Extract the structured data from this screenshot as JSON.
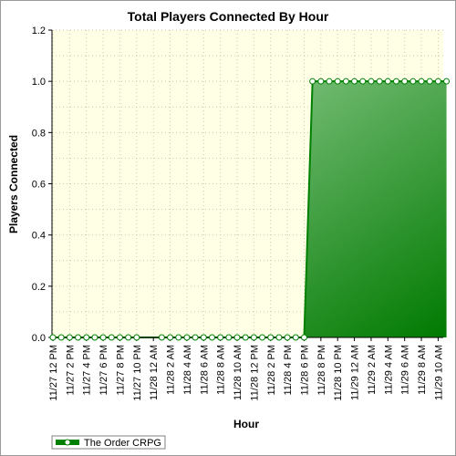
{
  "chart_data": {
    "type": "area",
    "title": "Total Players Connected By Hour",
    "xlabel": "Hour",
    "ylabel": "Players Connected",
    "ylim": [
      0,
      1.2
    ],
    "yticks": [
      "0.0",
      "0.2",
      "0.4",
      "0.6",
      "0.8",
      "1.0",
      "1.2"
    ],
    "xtick_labels": [
      "11/27 12 PM",
      "11/27 2 PM",
      "11/27 4 PM",
      "11/27 6 PM",
      "11/27 8 PM",
      "11/27 10 PM",
      "11/28 12 AM",
      "11/28 2 AM",
      "11/28 4 AM",
      "11/28 6 AM",
      "11/28 8 AM",
      "11/28 10 AM",
      "11/28 12 PM",
      "11/28 2 PM",
      "11/28 4 PM",
      "11/28 6 PM",
      "11/28 8 PM",
      "11/28 10 PM",
      "11/29 12 AM",
      "11/29 2 AM",
      "11/29 4 AM",
      "11/29 6 AM",
      "11/29 8 AM",
      "11/29 10 AM"
    ],
    "grid": true,
    "legend_position": "bottom-left",
    "colors": {
      "plot_bg": "#ffffe6",
      "line": "#008000",
      "fill_light": "#a6d8a6",
      "fill_dark": "#007a00",
      "grid": "#c8c8b4"
    },
    "series": [
      {
        "name": "The Order CRPG",
        "x": [
          "11/27 12 PM",
          "11/27 1 PM",
          "11/27 2 PM",
          "11/27 3 PM",
          "11/27 4 PM",
          "11/27 5 PM",
          "11/27 6 PM",
          "11/27 7 PM",
          "11/27 8 PM",
          "11/27 9 PM",
          "11/27 10 PM",
          "11/28 1 AM",
          "11/28 2 AM",
          "11/28 3 AM",
          "11/28 4 AM",
          "11/28 5 AM",
          "11/28 6 AM",
          "11/28 7 AM",
          "11/28 8 AM",
          "11/28 9 AM",
          "11/28 10 AM",
          "11/28 11 AM",
          "11/28 12 PM",
          "11/28 1 PM",
          "11/28 2 PM",
          "11/28 3 PM",
          "11/28 4 PM",
          "11/28 5 PM",
          "11/28 6 PM",
          "11/28 7 PM",
          "11/28 8 PM",
          "11/28 9 PM",
          "11/28 10 PM",
          "11/28 11 PM",
          "11/29 12 AM",
          "11/29 1 AM",
          "11/29 2 AM",
          "11/29 3 AM",
          "11/29 4 AM",
          "11/29 5 AM",
          "11/29 6 AM",
          "11/29 7 AM",
          "11/29 8 AM",
          "11/29 9 AM",
          "11/29 10 AM",
          "11/29 11 AM"
        ],
        "values": [
          0,
          0,
          0,
          0,
          0,
          0,
          0,
          0,
          0,
          0,
          0,
          0,
          0,
          0,
          0,
          0,
          0,
          0,
          0,
          0,
          0,
          0,
          0,
          0,
          0,
          0,
          0,
          0,
          0,
          1,
          1,
          1,
          1,
          1,
          1,
          1,
          1,
          1,
          1,
          1,
          1,
          1,
          1,
          1,
          1,
          1
        ]
      }
    ]
  }
}
